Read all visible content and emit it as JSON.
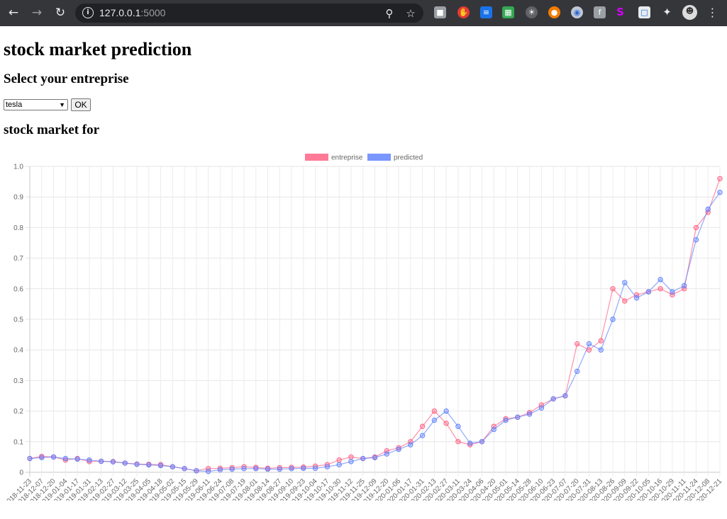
{
  "browser": {
    "url_host": "127.0.0.1",
    "url_port": ":5000",
    "icons": [
      "back-icon",
      "forward-icon",
      "reload-icon",
      "info-icon",
      "zoom-icon",
      "star-icon"
    ]
  },
  "page": {
    "title": "stock market prediction",
    "select_heading": "Select your entreprise",
    "select_value": "tesla",
    "ok_label": "OK",
    "chart_heading": "stock market for"
  },
  "colors": {
    "entreprise": "#ff6384",
    "predicted": "#6384ff"
  },
  "chart_data": {
    "type": "line",
    "title": "",
    "xlabel": "",
    "ylabel": "",
    "ylim": [
      0,
      1
    ],
    "yticks": [
      "0",
      "0.1",
      "0.2",
      "0.3",
      "0.4",
      "0.5",
      "0.6",
      "0.7",
      "0.8",
      "0.9",
      "1.0"
    ],
    "grid": true,
    "legend_position": "top",
    "x": [
      "2018-11-23",
      "2018-12-07",
      "2018-12-20",
      "2019-01-04",
      "2019-01-17",
      "2019-01-31",
      "2019-02-13",
      "2019-02-27",
      "2019-03-12",
      "2019-03-25",
      "2019-04-05",
      "2019-04-18",
      "2019-05-02",
      "2019-05-15",
      "2019-05-29",
      "2019-06-11",
      "2019-06-24",
      "2019-07-08",
      "2019-07-19",
      "2019-08-01",
      "2019-08-14",
      "2019-08-27",
      "2019-09-10",
      "2019-09-23",
      "2019-10-04",
      "2019-10-17",
      "2019-10-30",
      "2019-11-12",
      "2019-11-25",
      "2019-12-09",
      "2019-12-20",
      "2020-01-06",
      "2020-01-17",
      "2020-01-31",
      "2020-02-13",
      "2020-02-27",
      "2020-03-11",
      "2020-03-24",
      "2020-04-06",
      "2020-04-20",
      "2020-05-01",
      "2020-05-14",
      "2020-05-28",
      "2020-06-10",
      "2020-06-23",
      "2020-07-07",
      "2020-07-20",
      "2020-07-31",
      "2020-08-13",
      "2020-08-26",
      "2020-09-09",
      "2020-09-22",
      "2020-10-05",
      "2020-10-16",
      "2020-10-29",
      "2020-11-11",
      "2020-11-24",
      "2020-12-08",
      "2020-12-21"
    ],
    "series": [
      {
        "name": "entreprise",
        "values": [
          0.045,
          0.052,
          0.05,
          0.04,
          0.045,
          0.035,
          0.036,
          0.035,
          0.03,
          0.027,
          0.026,
          0.025,
          0.018,
          0.012,
          0.005,
          0.012,
          0.013,
          0.015,
          0.018,
          0.016,
          0.013,
          0.015,
          0.016,
          0.017,
          0.02,
          0.025,
          0.04,
          0.05,
          0.045,
          0.05,
          0.07,
          0.08,
          0.1,
          0.15,
          0.2,
          0.16,
          0.1,
          0.09,
          0.1,
          0.15,
          0.175,
          0.18,
          0.195,
          0.22,
          0.24,
          0.25,
          0.42,
          0.4,
          0.43,
          0.6,
          0.56,
          0.58,
          0.59,
          0.6,
          0.58,
          0.6,
          0.8,
          0.85,
          0.96
        ]
      },
      {
        "name": "predicted",
        "values": [
          0.045,
          0.048,
          0.05,
          0.045,
          0.043,
          0.04,
          0.036,
          0.034,
          0.03,
          0.026,
          0.024,
          0.022,
          0.018,
          0.012,
          0.005,
          0.003,
          0.008,
          0.01,
          0.012,
          0.012,
          0.01,
          0.01,
          0.012,
          0.013,
          0.013,
          0.018,
          0.025,
          0.035,
          0.045,
          0.048,
          0.06,
          0.075,
          0.09,
          0.12,
          0.17,
          0.2,
          0.15,
          0.095,
          0.1,
          0.14,
          0.17,
          0.18,
          0.19,
          0.21,
          0.24,
          0.25,
          0.33,
          0.42,
          0.4,
          0.5,
          0.62,
          0.57,
          0.59,
          0.63,
          0.59,
          0.61,
          0.76,
          0.86,
          0.915
        ]
      }
    ]
  }
}
